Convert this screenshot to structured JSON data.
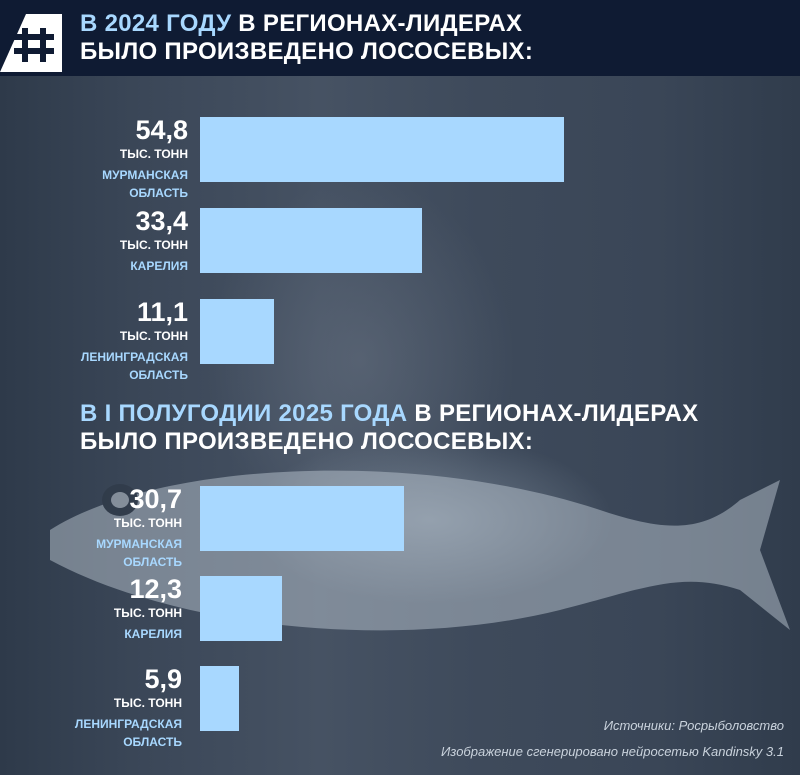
{
  "header": {
    "title_highlight": "В 2024 ГОДУ",
    "title_rest": " В РЕГИОНАХ-ЛИДЕРАХ",
    "title_line2": "БЫЛО ПРОИЗВЕДЕНО ЛОСОСЕВЫХ:"
  },
  "section2": {
    "title_highlight": "В I ПОЛУГОДИИ 2025 ГОДА",
    "title_rest": " В РЕГИОНАХ-ЛИДЕРАХ",
    "title_line2": "БЫЛО ПРОИЗВЕДЕНО ЛОСОСЕВЫХ:"
  },
  "chart_data": [
    {
      "type": "bar",
      "orientation": "horizontal",
      "categories": [
        "МУРМАНСКАЯ\nОБЛАСТЬ",
        "КАРЕЛИЯ",
        "ЛЕНИНГРАДСКАЯ\nОБЛАСТЬ"
      ],
      "values": [
        54.8,
        33.4,
        11.1
      ],
      "value_labels": [
        "54,8",
        "33,4",
        "11,1"
      ],
      "unit": "ТЫС. ТОНН",
      "color": "#a8d8ff"
    },
    {
      "type": "bar",
      "orientation": "horizontal",
      "categories": [
        "МУРМАНСКАЯ\nОБЛАСТЬ",
        "КАРЕЛИЯ",
        "ЛЕНИНГРАДСКАЯ\nОБЛАСТЬ"
      ],
      "values": [
        30.7,
        12.3,
        5.9
      ],
      "value_labels": [
        "30,7",
        "12,3",
        "5,9"
      ],
      "unit": "ТЫС. ТОНН",
      "color": "#a8d8ff"
    }
  ],
  "footer": {
    "source": "Источники: Росрыболовство",
    "image_credit": "Изображение сгенерировано нейросетью Kandinsky 3.1"
  },
  "colors": {
    "header_bg": "#0f1b33",
    "accent": "#a8d8ff"
  }
}
